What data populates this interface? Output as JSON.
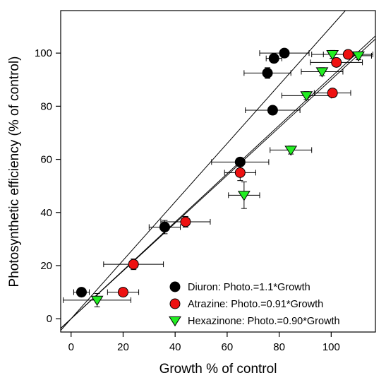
{
  "chart_data": {
    "type": "scatter",
    "title": "",
    "xlabel": "Growth % of control",
    "ylabel": "Photosynthetic efficiency (% of control)",
    "xlim": [
      -4,
      117
    ],
    "ylim": [
      -5,
      116
    ],
    "xticks": [
      0,
      20,
      40,
      60,
      80,
      100
    ],
    "yticks": [
      0,
      20,
      40,
      60,
      80,
      100
    ],
    "grid": false,
    "legend_position": "bottom-right",
    "series": [
      {
        "name": "Diuron: Photo.=1.1*Growth",
        "marker": "circle",
        "color": "#000000",
        "slope": 1.1,
        "points": [
          {
            "x": 4,
            "y": 10,
            "xerr": 3,
            "yerr": 1
          },
          {
            "x": 36,
            "y": 34.5,
            "xerr": 6,
            "yerr": 2.5
          },
          {
            "x": 65,
            "y": 59,
            "xerr": 11,
            "yerr": 1.5
          },
          {
            "x": 77.5,
            "y": 78.5,
            "xerr": 10.5,
            "yerr": 1.5
          },
          {
            "x": 75.5,
            "y": 92.5,
            "xerr": 9,
            "yerr": 2
          },
          {
            "x": 78,
            "y": 98,
            "xerr": 3,
            "yerr": 1.5
          },
          {
            "x": 82,
            "y": 100,
            "xerr": 9.5,
            "yerr": 1.5
          }
        ]
      },
      {
        "name": "Atrazine: Photo.=0.91*Growth",
        "marker": "circle",
        "color": "#ee1111",
        "slope": 0.91,
        "points": [
          {
            "x": 20,
            "y": 10,
            "xerr": 6,
            "yerr": 1.5
          },
          {
            "x": 24,
            "y": 20.5,
            "xerr": 11.5,
            "yerr": 2
          },
          {
            "x": 44,
            "y": 36.5,
            "xerr": 9.5,
            "yerr": 2
          },
          {
            "x": 65,
            "y": 55,
            "xerr": 6,
            "yerr": 3
          },
          {
            "x": 100.5,
            "y": 85,
            "xerr": 7,
            "yerr": 1.5
          },
          {
            "x": 102,
            "y": 96.5,
            "xerr": 10,
            "yerr": 1.5
          },
          {
            "x": 106.5,
            "y": 99.5,
            "xerr": 9.5,
            "yerr": 1.5
          }
        ]
      },
      {
        "name": "Hexazinone: Photo.=0.90*Growth",
        "marker": "triangle-down",
        "color": "#22ee22",
        "slope": 0.9,
        "points": [
          {
            "x": 10,
            "y": 7,
            "xerr": 13,
            "yerr": 2.5
          },
          {
            "x": 66.5,
            "y": 46.5,
            "xerr": 6,
            "yerr": 5
          },
          {
            "x": 84.5,
            "y": 63.5,
            "xerr": 8,
            "yerr": 1.5
          },
          {
            "x": 90.5,
            "y": 84,
            "xerr": 9.5,
            "yerr": 1.5
          },
          {
            "x": 96.5,
            "y": 93,
            "xerr": 8,
            "yerr": 1.5
          },
          {
            "x": 100.5,
            "y": 99.5,
            "xerr": 8,
            "yerr": 1.5
          },
          {
            "x": 110.5,
            "y": 99,
            "xerr": 5,
            "yerr": 1.5
          }
        ]
      }
    ]
  }
}
